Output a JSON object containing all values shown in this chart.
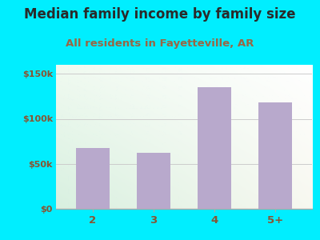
{
  "categories": [
    "2",
    "3",
    "4",
    "5+"
  ],
  "values": [
    68000,
    62000,
    135000,
    118000
  ],
  "bar_color": "#b8a9cc",
  "title": "Median family income by family size",
  "subtitle": "All residents in Fayetteville, AR",
  "title_fontsize": 12,
  "subtitle_fontsize": 9.5,
  "title_color": "#2a2a2a",
  "subtitle_color": "#996644",
  "tick_color": "#885533",
  "ylabel_ticks": [
    0,
    50000,
    100000,
    150000
  ],
  "ylabel_labels": [
    "$0",
    "$50k",
    "$100k",
    "$150k"
  ],
  "ylim": [
    0,
    160000
  ],
  "background_outer": "#00eeff",
  "plot_bg_top_left": "#f0faf0",
  "plot_bg_top_right": "#ffffff",
  "plot_bg_bottom_left": "#d8f0e0",
  "plot_bg_bottom_right": "#f8f8f0",
  "grid_color": "#cccccc"
}
